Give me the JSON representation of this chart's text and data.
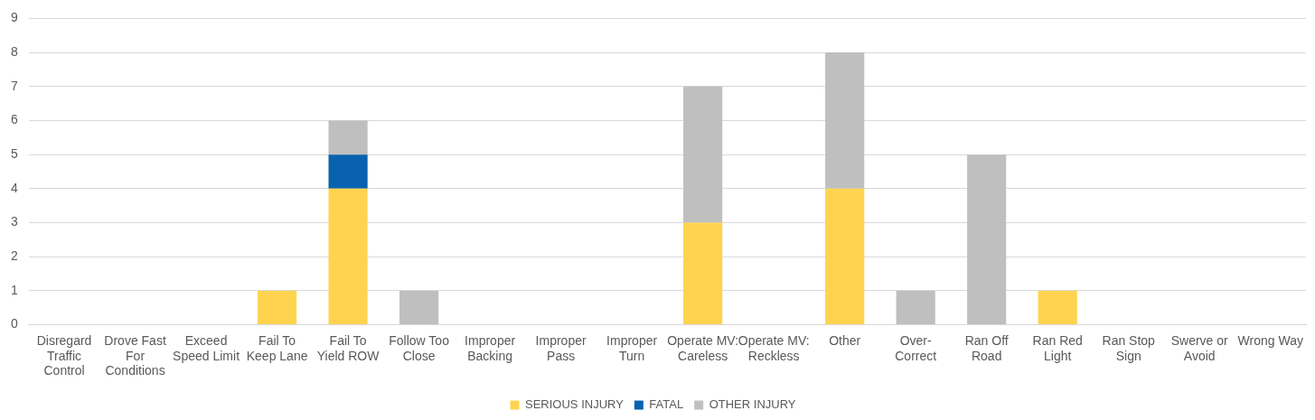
{
  "chart_data": {
    "type": "bar",
    "stacked": true,
    "categories": [
      "Disregard Traffic Control",
      "Drove Fast For Conditions",
      "Exceed Speed Limit",
      "Fail To Keep Lane",
      "Fail To Yield ROW",
      "Follow Too Close",
      "Improper Backing",
      "Improper Pass",
      "Improper Turn",
      "Operate MV: Careless",
      "Operate MV: Reckless",
      "Other",
      "Over-Correct",
      "Ran Off Road",
      "Ran Red Light",
      "Ran Stop Sign",
      "Swerve or Avoid",
      "Wrong Way"
    ],
    "series": [
      {
        "name": "SERIOUS INJURY",
        "color": "#ffd34f",
        "values": [
          0,
          0,
          0,
          1,
          4,
          0,
          0,
          0,
          0,
          3,
          0,
          4,
          0,
          0,
          1,
          0,
          0,
          0
        ]
      },
      {
        "name": "FATAL",
        "color": "#0862ae",
        "values": [
          0,
          0,
          0,
          0,
          1,
          0,
          0,
          0,
          0,
          0,
          0,
          0,
          0,
          0,
          0,
          0,
          0,
          0
        ]
      },
      {
        "name": "OTHER INJURY",
        "color": "#bfbfbf",
        "values": [
          0,
          0,
          0,
          0,
          1,
          1,
          0,
          0,
          0,
          4,
          0,
          4,
          1,
          5,
          0,
          0,
          0,
          0
        ]
      }
    ],
    "ylim": [
      0,
      9
    ],
    "yticks": [
      0,
      1,
      2,
      3,
      4,
      5,
      6,
      7,
      8,
      9
    ],
    "grid": "y",
    "legend": "bottom"
  }
}
